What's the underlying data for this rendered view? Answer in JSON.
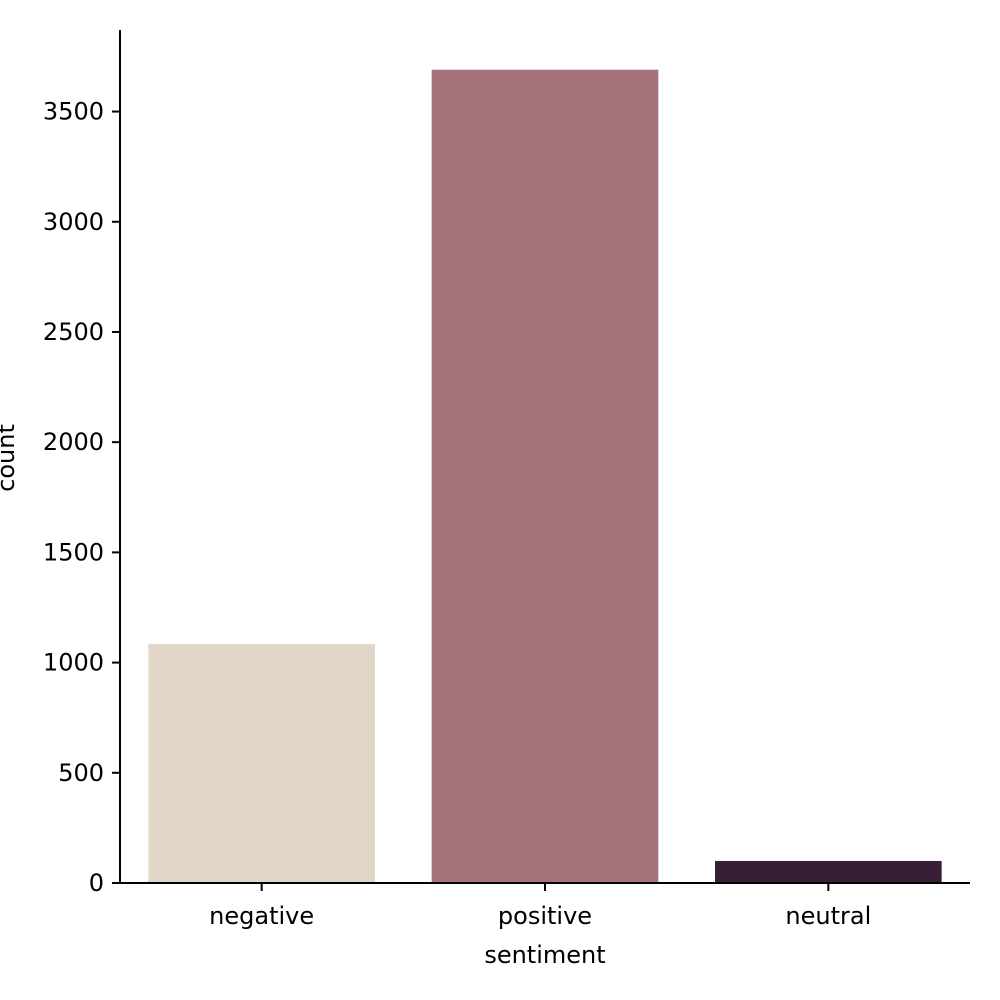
{
  "chart_data": {
    "type": "bar",
    "categories": [
      "negative",
      "positive",
      "neutral"
    ],
    "values": [
      1085,
      3690,
      100
    ],
    "colors": [
      "#e2d6c9",
      "#a4747a",
      "#372037"
    ],
    "xlabel": "sentiment",
    "ylabel": "count",
    "ylim": [
      0,
      3870
    ],
    "yticks": [
      0,
      500,
      1000,
      1500,
      2000,
      2500,
      3000,
      3500
    ],
    "grid": false,
    "legend": "none"
  }
}
